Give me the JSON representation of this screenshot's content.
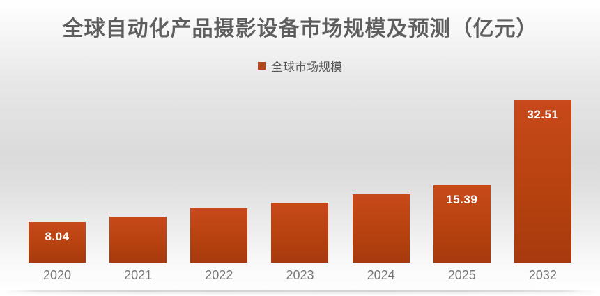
{
  "chart_data": {
    "type": "bar",
    "title": "全球自动化产品摄影设备市场规模及预测（亿元）",
    "legend": [
      "全球市场规模"
    ],
    "legend_position": "top-center",
    "categories": [
      "2020",
      "2021",
      "2022",
      "2023",
      "2024",
      "2025",
      "2032"
    ],
    "values": [
      8.04,
      9.2,
      10.8,
      12.0,
      13.6,
      15.39,
      32.51
    ],
    "data_labels": [
      "8.04",
      "",
      "",
      "",
      "",
      "15.39",
      "32.51"
    ],
    "xlabel": "",
    "ylabel": "",
    "ylim": [
      0,
      34.4
    ],
    "grid": false,
    "y_axis_visible": false,
    "colors": {
      "bar_top": "#c8491b",
      "bar_bottom": "#a63a0e",
      "legend_swatch": "#b5481a",
      "data_label_text": "#ffffff",
      "title_text": "#5e5e5e",
      "tick_text": "#787878"
    }
  }
}
